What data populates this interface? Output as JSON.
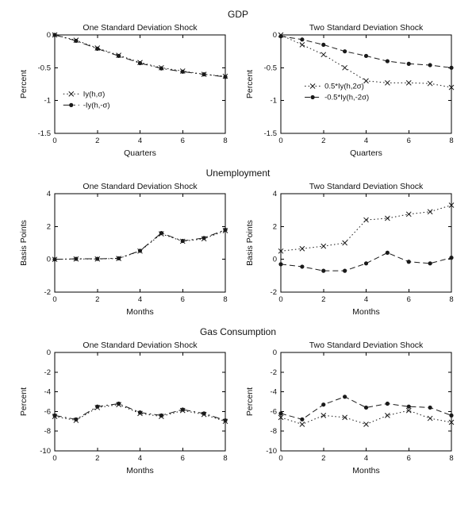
{
  "rows": [
    {
      "title": "GDP"
    },
    {
      "title": "Unemployment"
    },
    {
      "title": "Gas Consumption"
    }
  ],
  "colors": {
    "line": "#1a1a1a",
    "text": "#111111"
  },
  "chart_data": [
    {
      "type": "line",
      "group": "GDP",
      "title": "One Standard Deviation Shock",
      "xlabel": "Quarters",
      "ylabel": "Percent",
      "x": [
        0,
        1,
        2,
        3,
        4,
        5,
        6,
        7,
        8
      ],
      "xticks": [
        0,
        2,
        4,
        6,
        8
      ],
      "ylim": [
        -1.5,
        0
      ],
      "yticks": [
        0,
        -0.5,
        -1,
        -1.5
      ],
      "legend": {
        "show": true,
        "x": 0.05,
        "y": 0.6
      },
      "series": [
        {
          "name": "Iy(h,σ)",
          "marker": "x",
          "linestyle": "dotted",
          "values": [
            0,
            -0.08,
            -0.2,
            -0.31,
            -0.42,
            -0.5,
            -0.55,
            -0.6,
            -0.63
          ]
        },
        {
          "name": "-Iy(h,-σ)",
          "marker": "dot",
          "linestyle": "dashdot",
          "values": [
            0,
            -0.09,
            -0.21,
            -0.32,
            -0.43,
            -0.51,
            -0.56,
            -0.6,
            -0.64
          ]
        }
      ]
    },
    {
      "type": "line",
      "group": "GDP",
      "title": "Two Standard Deviation Shock",
      "xlabel": "Quarters",
      "ylabel": "Percent",
      "x": [
        0,
        1,
        2,
        3,
        4,
        5,
        6,
        7,
        8
      ],
      "xticks": [
        0,
        2,
        4,
        6,
        8
      ],
      "ylim": [
        -1.5,
        0
      ],
      "yticks": [
        0,
        -0.5,
        -1,
        -1.5
      ],
      "legend": {
        "show": true,
        "x": 0.14,
        "y": 0.52
      },
      "series": [
        {
          "name": "0.5*Iy(h,2σ)",
          "marker": "x",
          "linestyle": "dotted",
          "values": [
            0,
            -0.15,
            -0.3,
            -0.5,
            -0.7,
            -0.73,
            -0.73,
            -0.74,
            -0.8
          ]
        },
        {
          "name": "-0.5*Iy(h,-2σ)",
          "marker": "dot",
          "linestyle": "dashed",
          "values": [
            -0.02,
            -0.07,
            -0.15,
            -0.25,
            -0.32,
            -0.4,
            -0.44,
            -0.46,
            -0.5
          ]
        }
      ]
    },
    {
      "type": "line",
      "group": "Unemployment",
      "title": "One Standard Deviation Shock",
      "xlabel": "Months",
      "ylabel": "Basis Points",
      "x": [
        0,
        1,
        2,
        3,
        4,
        5,
        6,
        7,
        8
      ],
      "xticks": [
        0,
        2,
        4,
        6,
        8
      ],
      "ylim": [
        -2,
        4
      ],
      "yticks": [
        -2,
        0,
        2,
        4
      ],
      "legend": {
        "show": false,
        "x": 0,
        "y": 0
      },
      "series": [
        {
          "name": "Iy(h,σ)",
          "marker": "x",
          "linestyle": "dotted",
          "values": [
            0,
            0.02,
            0.02,
            0.05,
            0.5,
            1.55,
            1.1,
            1.25,
            1.75
          ]
        },
        {
          "name": "-Iy(h,-σ)",
          "marker": "dot",
          "linestyle": "dashdot",
          "values": [
            0,
            0.03,
            0.03,
            0.06,
            0.52,
            1.6,
            1.12,
            1.3,
            1.8
          ]
        }
      ]
    },
    {
      "type": "line",
      "group": "Unemployment",
      "title": "Two Standard Deviation Shock",
      "xlabel": "Months",
      "ylabel": "Basis Points",
      "x": [
        0,
        1,
        2,
        3,
        4,
        5,
        6,
        7,
        8
      ],
      "xticks": [
        0,
        2,
        4,
        6,
        8
      ],
      "ylim": [
        -2,
        4
      ],
      "yticks": [
        -2,
        0,
        2,
        4
      ],
      "legend": {
        "show": false,
        "x": 0,
        "y": 0
      },
      "series": [
        {
          "name": "0.5*Iy(h,2σ)",
          "marker": "x",
          "linestyle": "dotted",
          "values": [
            0.5,
            0.65,
            0.8,
            1.0,
            2.4,
            2.5,
            2.75,
            2.9,
            3.3
          ]
        },
        {
          "name": "-0.5*Iy(h,-2σ)",
          "marker": "dot",
          "linestyle": "dashed",
          "values": [
            -0.3,
            -0.45,
            -0.7,
            -0.7,
            -0.25,
            0.4,
            -0.15,
            -0.25,
            0.1
          ]
        }
      ]
    },
    {
      "type": "line",
      "group": "Gas Consumption",
      "title": "One Standard Deviation Shock",
      "xlabel": "Months",
      "ylabel": "Percent",
      "x": [
        0,
        1,
        2,
        3,
        4,
        5,
        6,
        7,
        8
      ],
      "xticks": [
        0,
        2,
        4,
        6,
        8
      ],
      "ylim": [
        -10,
        0
      ],
      "yticks": [
        0,
        -2,
        -4,
        -6,
        -8,
        -10
      ],
      "legend": {
        "show": false,
        "x": 0,
        "y": 0
      },
      "series": [
        {
          "name": "Iy(h,σ)",
          "marker": "x",
          "linestyle": "dotted",
          "values": [
            -6.5,
            -6.9,
            -5.6,
            -5.3,
            -6.2,
            -6.5,
            -5.9,
            -6.3,
            -7.0
          ]
        },
        {
          "name": "-Iy(h,-σ)",
          "marker": "dot",
          "linestyle": "dashdot",
          "values": [
            -6.4,
            -6.8,
            -5.5,
            -5.2,
            -6.1,
            -6.4,
            -5.8,
            -6.2,
            -6.9
          ]
        }
      ]
    },
    {
      "type": "line",
      "group": "Gas Consumption",
      "title": "Two Standard Deviation Shock",
      "xlabel": "Months",
      "ylabel": "Percent",
      "x": [
        0,
        1,
        2,
        3,
        4,
        5,
        6,
        7,
        8
      ],
      "xticks": [
        0,
        2,
        4,
        6,
        8
      ],
      "ylim": [
        -10,
        0
      ],
      "yticks": [
        0,
        -2,
        -4,
        -6,
        -8,
        -10
      ],
      "legend": {
        "show": false,
        "x": 0,
        "y": 0
      },
      "series": [
        {
          "name": "0.5*Iy(h,2σ)",
          "marker": "x",
          "linestyle": "dotted",
          "values": [
            -6.6,
            -7.3,
            -6.4,
            -6.6,
            -7.3,
            -6.4,
            -5.9,
            -6.7,
            -7.1
          ]
        },
        {
          "name": "-0.5*Iy(h,-2σ)",
          "marker": "dot",
          "linestyle": "dashed",
          "values": [
            -6.2,
            -6.8,
            -5.3,
            -4.5,
            -5.6,
            -5.2,
            -5.5,
            -5.6,
            -6.4
          ]
        }
      ]
    }
  ]
}
